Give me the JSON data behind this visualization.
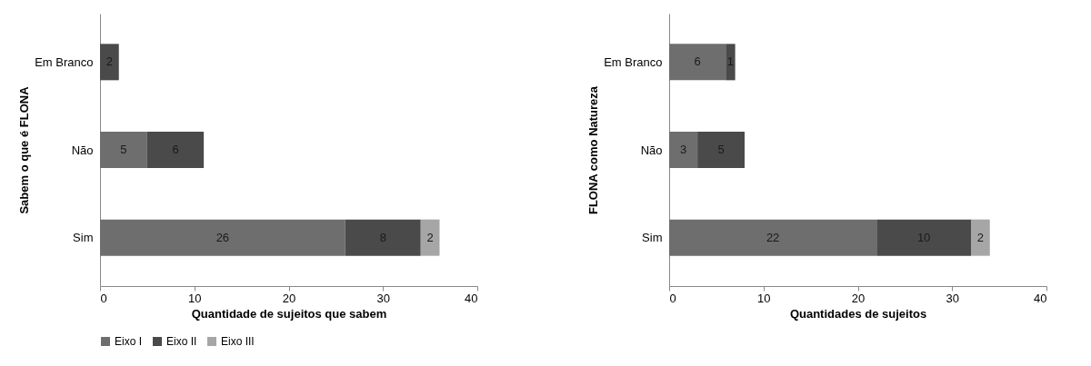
{
  "chart_data": [
    {
      "type": "bar",
      "orientation": "horizontal",
      "stacked": true,
      "categories": [
        "Em Branco",
        "Não",
        "Sim"
      ],
      "xlabel": "Quantidade de sujeitos que sabem",
      "ylabel": "Sabem o que é FLONA",
      "xlim": [
        0,
        40
      ],
      "xticks": [
        0,
        10,
        20,
        30,
        40
      ],
      "grid": false,
      "legend": "bottom",
      "data_labels": true,
      "series": [
        {
          "name": "Eixo I",
          "color": "#6e6e6e",
          "values": [
            null,
            5,
            26
          ]
        },
        {
          "name": "Eixo II",
          "color": "#4a4a4a",
          "values": [
            2,
            6,
            8
          ]
        },
        {
          "name": "Eixo III",
          "color": "#a6a6a6",
          "values": [
            null,
            null,
            2
          ]
        }
      ]
    },
    {
      "type": "bar",
      "orientation": "horizontal",
      "stacked": true,
      "categories": [
        "Em Branco",
        "Não",
        "Sim"
      ],
      "xlabel": "Quantidades de sujeitos",
      "ylabel": "FLONA como Natureza",
      "xlim": [
        0,
        40
      ],
      "xticks": [
        0,
        10,
        20,
        30,
        40
      ],
      "grid": false,
      "legend": "bottom",
      "data_labels": true,
      "series": [
        {
          "name": "Eixo I",
          "color": "#6e6e6e",
          "values": [
            6,
            3,
            22
          ]
        },
        {
          "name": "Eixo II",
          "color": "#4a4a4a",
          "values": [
            1,
            5,
            10
          ]
        },
        {
          "name": "Eixo III",
          "color": "#a6a6a6",
          "values": [
            null,
            null,
            2
          ]
        }
      ]
    }
  ]
}
